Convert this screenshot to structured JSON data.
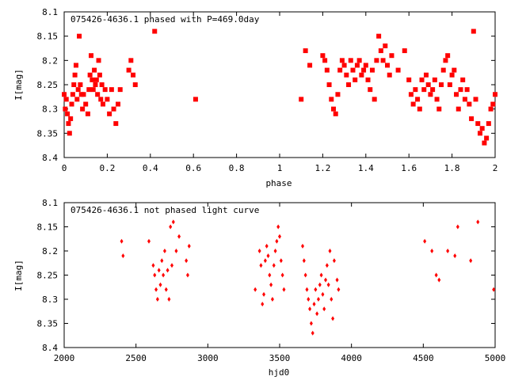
{
  "chart_data": [
    {
      "type": "scatter",
      "title": "075426-4636.1 phased with P=469.0day",
      "xlabel": "phase",
      "ylabel": "I[mag]",
      "xlim": [
        0,
        2
      ],
      "ylim": [
        8.1,
        8.4
      ],
      "y_inverted": true,
      "x_ticks": [
        "0",
        "0.2",
        "0.4",
        "0.6",
        "0.8",
        "1",
        "1.2",
        "1.4",
        "1.6",
        "1.8",
        "2"
      ],
      "y_ticks": [
        "8.1",
        "8.15",
        "8.2",
        "8.25",
        "8.3",
        "8.35",
        "8.4"
      ],
      "grid": false,
      "marker": "filled-square",
      "color": "#ff0000",
      "series": [
        {
          "x": [
            0.0,
            0.005,
            0.01,
            0.015,
            0.02,
            0.025,
            0.03,
            0.035,
            0.04,
            0.045,
            0.05,
            0.055,
            0.06,
            0.065,
            0.07,
            0.075,
            0.08,
            0.085,
            0.09,
            0.1,
            0.11,
            0.115,
            0.12,
            0.125,
            0.13,
            0.135,
            0.14,
            0.145,
            0.15,
            0.155,
            0.16,
            0.165,
            0.17,
            0.175,
            0.18,
            0.19,
            0.2,
            0.21,
            0.22,
            0.23,
            0.24,
            0.25,
            0.26,
            0.3,
            0.31,
            0.32,
            0.33,
            0.42,
            0.61,
            1.1,
            1.12,
            1.14,
            1.2,
            1.21,
            1.22,
            1.23,
            1.24,
            1.25,
            1.26,
            1.27,
            1.28,
            1.29,
            1.3,
            1.31,
            1.32,
            1.33,
            1.34,
            1.35,
            1.36,
            1.37,
            1.38,
            1.39,
            1.4,
            1.41,
            1.42,
            1.43,
            1.44,
            1.45,
            1.46,
            1.47,
            1.48,
            1.49,
            1.5,
            1.51,
            1.52,
            1.55,
            1.58,
            1.6,
            1.61,
            1.62,
            1.63,
            1.64,
            1.65,
            1.66,
            1.67,
            1.68,
            1.69,
            1.7,
            1.71,
            1.72,
            1.73,
            1.74,
            1.75,
            1.76,
            1.77,
            1.78,
            1.79,
            1.8,
            1.81,
            1.82,
            1.83,
            1.84,
            1.85,
            1.86,
            1.87,
            1.88,
            1.89,
            1.9,
            1.91,
            1.92,
            1.93,
            1.94,
            1.95,
            1.96,
            1.97,
            1.98,
            1.99,
            2.0
          ],
          "y": [
            8.27,
            8.3,
            8.28,
            8.31,
            8.33,
            8.35,
            8.32,
            8.29,
            8.27,
            8.25,
            8.23,
            8.21,
            8.28,
            8.26,
            8.15,
            8.25,
            8.27,
            8.3,
            8.27,
            8.29,
            8.31,
            8.26,
            8.23,
            8.19,
            8.24,
            8.26,
            8.22,
            8.25,
            8.24,
            8.27,
            8.2,
            8.23,
            8.28,
            8.25,
            8.29,
            8.26,
            8.28,
            8.31,
            8.26,
            8.3,
            8.33,
            8.29,
            8.26,
            8.22,
            8.2,
            8.23,
            8.25,
            8.14,
            8.28,
            8.28,
            8.18,
            8.21,
            8.19,
            8.2,
            8.22,
            8.25,
            8.28,
            8.3,
            8.31,
            8.27,
            8.22,
            8.2,
            8.21,
            8.23,
            8.25,
            8.2,
            8.22,
            8.24,
            8.21,
            8.2,
            8.23,
            8.22,
            8.21,
            8.24,
            8.26,
            8.22,
            8.28,
            8.2,
            8.15,
            8.18,
            8.2,
            8.17,
            8.21,
            8.23,
            8.19,
            8.22,
            8.18,
            8.24,
            8.27,
            8.29,
            8.26,
            8.28,
            8.3,
            8.24,
            8.26,
            8.23,
            8.25,
            8.27,
            8.26,
            8.24,
            8.28,
            8.3,
            8.25,
            8.22,
            8.2,
            8.19,
            8.25,
            8.23,
            8.22,
            8.27,
            8.3,
            8.26,
            8.24,
            8.28,
            8.26,
            8.29,
            8.32,
            8.14,
            8.28,
            8.33,
            8.35,
            8.34,
            8.37,
            8.36,
            8.33,
            8.3,
            8.29,
            8.27
          ]
        }
      ]
    },
    {
      "type": "scatter",
      "title": "075426-4636.1 not phased light curve",
      "xlabel": "hjd0",
      "ylabel": "I[mag]",
      "xlim": [
        2000,
        5000
      ],
      "ylim": [
        8.1,
        8.4
      ],
      "y_inverted": true,
      "x_ticks": [
        "2000",
        "2500",
        "3000",
        "3500",
        "4000",
        "4500",
        "5000"
      ],
      "y_ticks": [
        "8.1",
        "8.15",
        "8.2",
        "8.25",
        "8.3",
        "8.35",
        "8.4"
      ],
      "grid": false,
      "marker": "filled-diamond",
      "color": "#ff0000",
      "series": [
        {
          "x": [
            2400,
            2410,
            2590,
            2620,
            2630,
            2640,
            2650,
            2660,
            2670,
            2680,
            2690,
            2700,
            2710,
            2720,
            2730,
            2740,
            2750,
            2760,
            2780,
            2800,
            2850,
            2860,
            2870,
            3330,
            3360,
            3370,
            3380,
            3390,
            3400,
            3410,
            3420,
            3430,
            3440,
            3450,
            3460,
            3470,
            3480,
            3490,
            3500,
            3510,
            3520,
            3530,
            3660,
            3670,
            3680,
            3690,
            3700,
            3710,
            3720,
            3730,
            3740,
            3750,
            3760,
            3770,
            3780,
            3790,
            3800,
            3810,
            3820,
            3830,
            3840,
            3850,
            3860,
            3870,
            3880,
            3900,
            3910,
            4510,
            4560,
            4590,
            4610,
            4670,
            4720,
            4740,
            4830,
            4880,
            4990
          ],
          "y": [
            8.18,
            8.21,
            8.18,
            8.23,
            8.25,
            8.28,
            8.3,
            8.24,
            8.27,
            8.22,
            8.25,
            8.2,
            8.28,
            8.24,
            8.3,
            8.15,
            8.23,
            8.14,
            8.2,
            8.17,
            8.22,
            8.25,
            8.19,
            8.28,
            8.2,
            8.23,
            8.31,
            8.29,
            8.22,
            8.19,
            8.21,
            8.25,
            8.27,
            8.3,
            8.23,
            8.2,
            8.18,
            8.15,
            8.17,
            8.22,
            8.25,
            8.28,
            8.19,
            8.22,
            8.25,
            8.28,
            8.3,
            8.32,
            8.35,
            8.37,
            8.31,
            8.28,
            8.33,
            8.3,
            8.27,
            8.25,
            8.29,
            8.32,
            8.26,
            8.23,
            8.27,
            8.2,
            8.3,
            8.34,
            8.22,
            8.26,
            8.28,
            8.18,
            8.2,
            8.25,
            8.26,
            8.2,
            8.21,
            8.15,
            8.22,
            8.14,
            8.28
          ]
        }
      ]
    }
  ]
}
